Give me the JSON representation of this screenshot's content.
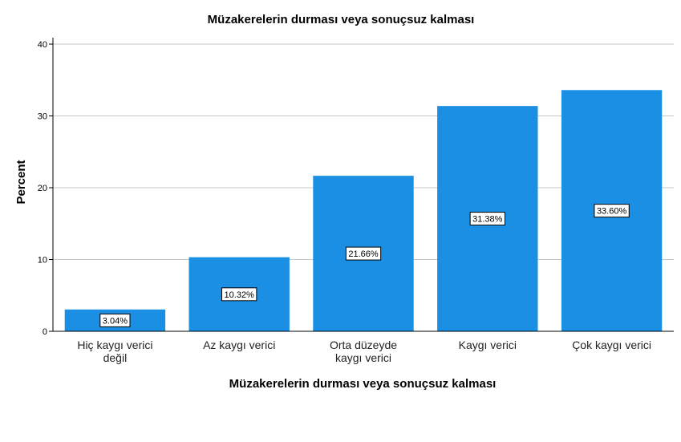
{
  "chart_data": {
    "type": "bar",
    "title": "Müzakerelerin durması veya sonuçsuz kalması",
    "xlabel": "Müzakerelerin durması veya sonuçsuz kalması",
    "ylabel": "Percent",
    "categories": [
      [
        "Hiç kaygı verici",
        "değil"
      ],
      [
        "Az kaygı verici"
      ],
      [
        "Orta düzeyde",
        "kaygı verici"
      ],
      [
        "Kaygı verici"
      ],
      [
        "Çok kaygı verici"
      ]
    ],
    "values": [
      3.04,
      10.32,
      21.66,
      31.38,
      33.6
    ],
    "data_labels": [
      "3.04%",
      "10.32%",
      "21.66%",
      "31.38%",
      "33.60%"
    ],
    "ylim": [
      0,
      40
    ],
    "yticks": [
      0,
      10,
      20,
      30,
      40
    ],
    "grid": true,
    "bar_color": "#1a8fe3",
    "grid_color": "#c8c8c8"
  }
}
